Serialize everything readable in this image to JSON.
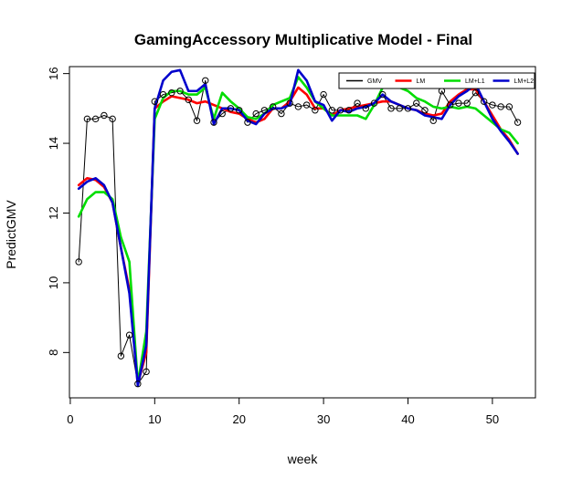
{
  "chart_data": {
    "type": "line",
    "title": "GamingAccessory Multiplicative Model - Final",
    "xlabel": "week",
    "ylabel": "PredictGMV",
    "xlim": [
      -0.1,
      55.1
    ],
    "ylim": [
      6.7,
      16.2
    ],
    "x_ticks": [
      0,
      10,
      20,
      30,
      40,
      50
    ],
    "y_ticks": [
      8,
      10,
      12,
      14,
      16
    ],
    "legend_position": "top-right",
    "grid": false,
    "x": [
      1,
      2,
      3,
      4,
      5,
      6,
      7,
      8,
      9,
      10,
      11,
      12,
      13,
      14,
      15,
      16,
      17,
      18,
      19,
      20,
      21,
      22,
      23,
      24,
      25,
      26,
      27,
      28,
      29,
      30,
      31,
      32,
      33,
      34,
      35,
      36,
      37,
      38,
      39,
      40,
      41,
      42,
      43,
      44,
      45,
      46,
      47,
      48,
      49,
      50,
      51,
      52,
      53
    ],
    "series": [
      {
        "name": "GMV",
        "color": "#000000",
        "style": "line-points",
        "values": [
          10.6,
          14.7,
          14.7,
          14.8,
          14.7,
          7.9,
          8.5,
          7.1,
          7.45,
          15.2,
          15.4,
          15.45,
          15.5,
          15.25,
          14.65,
          15.8,
          14.6,
          14.85,
          15.0,
          14.95,
          14.6,
          14.85,
          14.95,
          15.05,
          14.85,
          15.15,
          15.05,
          15.1,
          14.95,
          15.4,
          14.95,
          14.95,
          14.95,
          15.15,
          15.0,
          15.15,
          15.4,
          15.0,
          15.0,
          15.0,
          15.15,
          14.95,
          14.65,
          15.5,
          15.1,
          15.15,
          15.15,
          15.45,
          15.2,
          15.1,
          15.05,
          15.05,
          14.6
        ]
      },
      {
        "name": "LM",
        "color": "#ff0000",
        "style": "line",
        "values": [
          12.8,
          13.0,
          12.95,
          12.75,
          12.3,
          11.0,
          9.8,
          7.1,
          8.0,
          15.0,
          15.2,
          15.35,
          15.3,
          15.25,
          15.15,
          15.2,
          15.1,
          15.0,
          14.9,
          14.85,
          14.7,
          14.6,
          14.7,
          15.0,
          15.0,
          15.2,
          15.6,
          15.4,
          15.0,
          15.0,
          14.8,
          14.95,
          15.0,
          15.05,
          15.1,
          15.15,
          15.2,
          15.2,
          15.1,
          15.0,
          14.95,
          14.85,
          14.8,
          14.85,
          15.2,
          15.4,
          15.55,
          15.55,
          15.2,
          14.8,
          14.4,
          14.1,
          13.7
        ]
      },
      {
        "name": "LM+L1",
        "color": "#00dd00",
        "style": "line",
        "values": [
          11.9,
          12.4,
          12.6,
          12.6,
          12.4,
          11.3,
          10.6,
          7.1,
          8.6,
          14.7,
          15.3,
          15.5,
          15.5,
          15.4,
          15.4,
          15.6,
          14.7,
          15.45,
          15.2,
          15.0,
          14.75,
          14.7,
          14.85,
          15.1,
          15.2,
          15.3,
          15.9,
          15.6,
          15.2,
          15.0,
          14.8,
          14.8,
          14.8,
          14.8,
          14.7,
          15.1,
          15.6,
          15.6,
          15.6,
          15.5,
          15.3,
          15.2,
          15.05,
          15.0,
          15.05,
          15.0,
          15.05,
          15.0,
          14.8,
          14.6,
          14.4,
          14.3,
          14.0
        ]
      },
      {
        "name": "LM+L2",
        "color": "#0000cc",
        "style": "line",
        "values": [
          12.7,
          12.9,
          13.0,
          12.8,
          12.3,
          11.0,
          9.7,
          7.05,
          8.2,
          15.0,
          15.8,
          16.05,
          16.1,
          15.5,
          15.5,
          15.7,
          14.55,
          15.0,
          15.0,
          14.95,
          14.65,
          14.55,
          14.85,
          15.0,
          15.0,
          15.1,
          16.1,
          15.8,
          15.2,
          15.1,
          14.65,
          14.95,
          14.9,
          15.0,
          15.05,
          15.15,
          15.4,
          15.2,
          15.1,
          15.0,
          14.95,
          14.8,
          14.75,
          14.7,
          15.1,
          15.35,
          15.5,
          15.7,
          15.2,
          14.7,
          14.35,
          14.05,
          13.7
        ]
      }
    ]
  }
}
